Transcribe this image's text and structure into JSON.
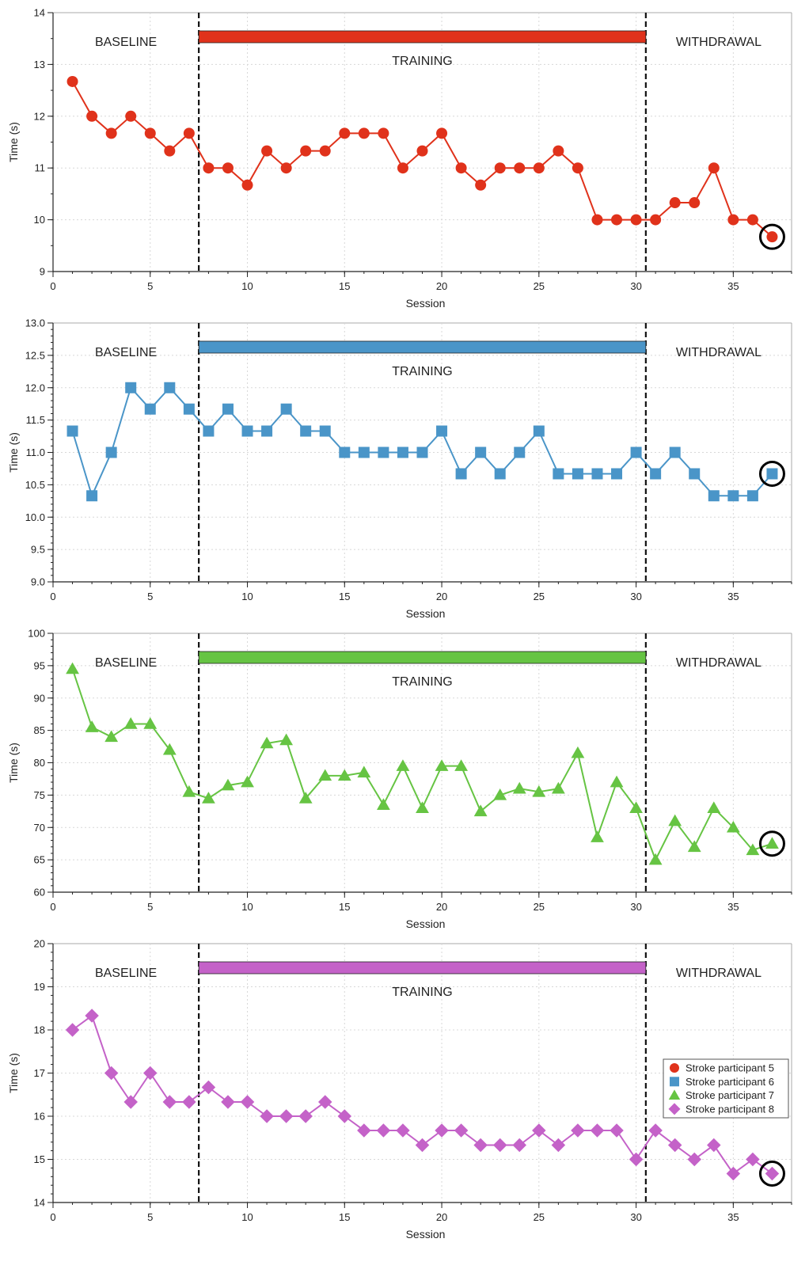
{
  "shared": {
    "xlabel": "Session",
    "ylabel": "Time (s)",
    "phase_labels": {
      "baseline": "BASELINE",
      "training": "TRAINING",
      "withdrawal": "WITHDRAWAL"
    },
    "phase_boundaries": [
      7.5,
      30.5
    ],
    "xlim": [
      0,
      38
    ],
    "xticks": [
      0,
      5,
      10,
      15,
      20,
      25,
      30,
      35
    ],
    "highlighted_session": 37
  },
  "legend": {
    "placement": "bottom-right of last panel",
    "entries": [
      {
        "label": "Stroke participant 5",
        "marker": "circle",
        "color": "#e0321b"
      },
      {
        "label": "Stroke participant 6",
        "marker": "square",
        "color": "#4a95c8"
      },
      {
        "label": "Stroke participant 7",
        "marker": "triangle",
        "color": "#66c443"
      },
      {
        "label": "Stroke participant 8",
        "marker": "diamond",
        "color": "#c462c8"
      }
    ]
  },
  "chart_data": [
    {
      "type": "line",
      "name": "Stroke participant 5",
      "color": "#e0321b",
      "marker": "circle",
      "ylim": [
        9,
        14
      ],
      "yticks": [
        9,
        10,
        11,
        12,
        13,
        14
      ],
      "yminor_step": 0.5,
      "grid": true,
      "x": [
        1,
        2,
        3,
        4,
        5,
        6,
        7,
        8,
        9,
        10,
        11,
        12,
        13,
        14,
        15,
        16,
        17,
        18,
        19,
        20,
        21,
        22,
        23,
        24,
        25,
        26,
        27,
        28,
        29,
        30,
        31,
        32,
        33,
        34,
        35,
        36,
        37
      ],
      "values": [
        12.67,
        12.0,
        11.67,
        12.0,
        11.67,
        11.33,
        11.67,
        11.0,
        11.0,
        10.67,
        11.33,
        11.0,
        11.33,
        11.33,
        11.67,
        11.67,
        11.67,
        11.0,
        11.33,
        11.67,
        11.0,
        10.67,
        11.0,
        11.0,
        11.0,
        11.33,
        11.0,
        10.0,
        10.0,
        10.0,
        10.0,
        10.33,
        10.33,
        11.0,
        10.0,
        10.0,
        9.67
      ]
    },
    {
      "type": "line",
      "name": "Stroke participant 6",
      "color": "#4a95c8",
      "marker": "square",
      "ylim": [
        9.0,
        13.0
      ],
      "yticks": [
        9.0,
        9.5,
        10.0,
        10.5,
        11.0,
        11.5,
        12.0,
        12.5,
        13.0
      ],
      "yminor_step": 0.1,
      "grid": true,
      "x": [
        1,
        2,
        3,
        4,
        5,
        6,
        7,
        8,
        9,
        10,
        11,
        12,
        13,
        14,
        15,
        16,
        17,
        18,
        19,
        20,
        21,
        22,
        23,
        24,
        25,
        26,
        27,
        28,
        29,
        30,
        31,
        32,
        33,
        34,
        35,
        36,
        37
      ],
      "values": [
        11.33,
        10.33,
        11.0,
        12.0,
        11.67,
        12.0,
        11.67,
        11.33,
        11.67,
        11.33,
        11.33,
        11.67,
        11.33,
        11.33,
        11.0,
        11.0,
        11.0,
        11.0,
        11.0,
        11.33,
        10.67,
        11.0,
        10.67,
        11.0,
        11.33,
        10.67,
        10.67,
        10.67,
        10.67,
        11.0,
        10.67,
        11.0,
        10.67,
        10.33,
        10.33,
        10.33,
        10.67
      ]
    },
    {
      "type": "line",
      "name": "Stroke participant 7",
      "color": "#66c443",
      "marker": "triangle",
      "ylim": [
        60,
        100
      ],
      "yticks": [
        60,
        65,
        70,
        75,
        80,
        85,
        90,
        95,
        100
      ],
      "yminor_step": 1,
      "grid": true,
      "x": [
        1,
        2,
        3,
        4,
        5,
        6,
        7,
        8,
        9,
        10,
        11,
        12,
        13,
        14,
        15,
        16,
        17,
        18,
        19,
        20,
        21,
        22,
        23,
        24,
        25,
        26,
        27,
        28,
        29,
        30,
        31,
        32,
        33,
        34,
        35,
        36,
        37
      ],
      "values": [
        94.5,
        85.5,
        84.0,
        86.0,
        86.0,
        82.0,
        75.5,
        74.5,
        76.5,
        77.0,
        83.0,
        83.5,
        74.5,
        78.0,
        78.0,
        78.5,
        73.5,
        79.5,
        73.0,
        79.5,
        79.5,
        72.5,
        75.0,
        76.0,
        75.5,
        76.0,
        81.5,
        68.5,
        77.0,
        73.0,
        65.0,
        71.0,
        67.0,
        73.0,
        70.0,
        66.5,
        67.5
      ]
    },
    {
      "type": "line",
      "name": "Stroke participant 8",
      "color": "#c462c8",
      "marker": "diamond",
      "ylim": [
        14,
        20
      ],
      "yticks": [
        14,
        15,
        16,
        17,
        18,
        19,
        20
      ],
      "yminor_step": 0.2,
      "grid": true,
      "x": [
        1,
        2,
        3,
        4,
        5,
        6,
        7,
        8,
        9,
        10,
        11,
        12,
        13,
        14,
        15,
        16,
        17,
        18,
        19,
        20,
        21,
        22,
        23,
        24,
        25,
        26,
        27,
        28,
        29,
        30,
        31,
        32,
        33,
        34,
        35,
        36,
        37
      ],
      "values": [
        18.0,
        18.33,
        17.0,
        16.33,
        17.0,
        16.33,
        16.33,
        16.67,
        16.33,
        16.33,
        16.0,
        16.0,
        16.0,
        16.33,
        16.0,
        15.67,
        15.67,
        15.67,
        15.33,
        15.67,
        15.67,
        15.33,
        15.33,
        15.33,
        15.67,
        15.33,
        15.67,
        15.67,
        15.67,
        15.0,
        15.67,
        15.33,
        15.0,
        15.33,
        14.67,
        15.0,
        14.67
      ]
    }
  ]
}
